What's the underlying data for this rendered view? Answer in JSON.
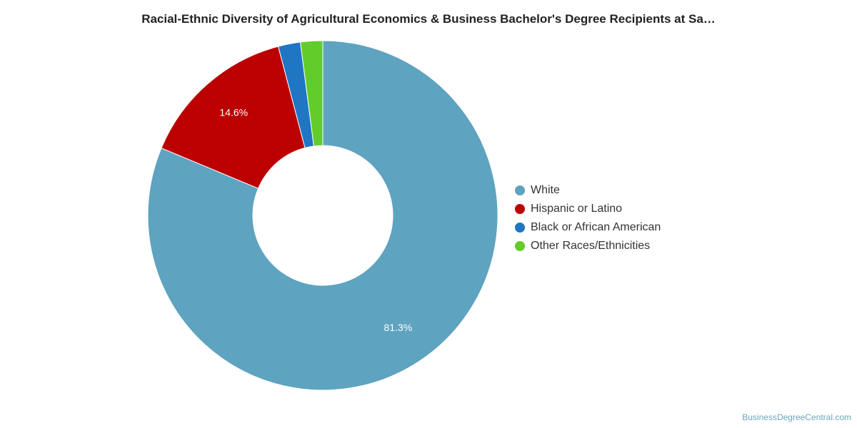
{
  "title": "Racial-Ethnic Diversity of Agricultural Economics & Business Bachelor's Degree Recipients at Sa…",
  "credit": "BusinessDegreeCentral.com",
  "chart_data": {
    "type": "pie",
    "donut": true,
    "title": "Racial-Ethnic Diversity of Agricultural Economics & Business Bachelor's Degree Recipients at Sa…",
    "legend_position": "right",
    "slices": [
      {
        "name": "White",
        "value": 81.3,
        "color": "#5ea3bf",
        "label": "81.3%"
      },
      {
        "name": "Hispanic or Latino",
        "value": 14.6,
        "color": "#bc0000",
        "label": "14.6%"
      },
      {
        "name": "Black or African American",
        "value": 2.05,
        "color": "#1f76c3",
        "label": ""
      },
      {
        "name": "Other Races/Ethnicities",
        "value": 2.05,
        "color": "#62cd2a",
        "label": ""
      }
    ]
  }
}
